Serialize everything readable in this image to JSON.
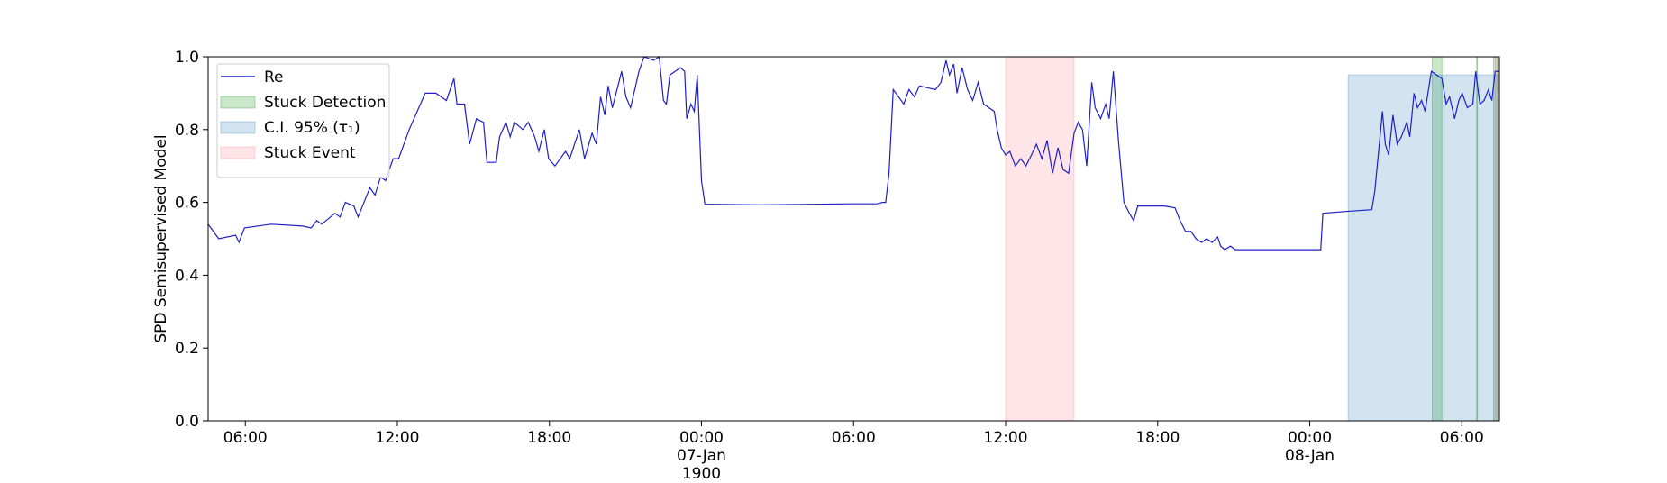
{
  "chart_data": {
    "type": "line",
    "ylabel": "SPD Semisupervised Model",
    "xlim": [
      "1900-01-06 04:32",
      "1900-01-08 07:29"
    ],
    "xticks": [
      {
        "value": "1900-01-06 06:00",
        "label": "06:00"
      },
      {
        "value": "1900-01-06 12:00",
        "label": "12:00"
      },
      {
        "value": "1900-01-06 18:00",
        "label": "18:00"
      },
      {
        "value": "1900-01-07 00:00",
        "label": "00:00\n07-Jan\n1900"
      },
      {
        "value": "1900-01-07 06:00",
        "label": "06:00"
      },
      {
        "value": "1900-01-07 12:00",
        "label": "12:00"
      },
      {
        "value": "1900-01-07 18:00",
        "label": "18:00"
      },
      {
        "value": "1900-01-08 00:00",
        "label": "00:00\n08-Jan"
      },
      {
        "value": "1900-01-08 06:00",
        "label": "06:00"
      }
    ],
    "ylim": [
      0,
      1
    ],
    "yticks": [
      {
        "value": 0,
        "label": "0.0"
      },
      {
        "value": 0.2,
        "label": "0.2"
      },
      {
        "value": 0.4,
        "label": "0.4"
      },
      {
        "value": 0.6,
        "label": "0.6"
      },
      {
        "value": 0.8,
        "label": "0.8"
      },
      {
        "value": 1,
        "label": "1.0"
      }
    ],
    "grid": false,
    "legend": "upper left",
    "x": [
      "1900-01-06 04:32",
      "1900-01-06 04:57",
      "1900-01-06 05:37",
      "1900-01-06 05:45",
      "1900-01-06 05:58",
      "1900-01-06 07:01",
      "1900-01-06 08:16",
      "1900-01-06 08:36",
      "1900-01-06 08:49",
      "1900-01-06 09:01",
      "1900-01-06 09:32",
      "1900-01-06 09:44",
      "1900-01-06 09:57",
      "1900-01-06 10:17",
      "1900-01-06 10:27",
      "1900-01-06 10:55",
      "1900-01-06 11:07",
      "1900-01-06 11:20",
      "1900-01-06 11:32",
      "1900-01-06 11:50",
      "1900-01-06 12:03",
      "1900-01-06 12:28",
      "1900-01-06 13:06",
      "1900-01-06 13:31",
      "1900-01-06 13:56",
      "1900-01-06 14:14",
      "1900-01-06 14:21",
      "1900-01-06 14:39",
      "1900-01-06 14:51",
      "1900-01-06 15:07",
      "1900-01-06 15:24",
      "1900-01-06 15:32",
      "1900-01-06 15:54",
      "1900-01-06 16:02",
      "1900-01-06 16:17",
      "1900-01-06 16:27",
      "1900-01-06 16:37",
      "1900-01-06 16:57",
      "1900-01-06 17:10",
      "1900-01-06 17:25",
      "1900-01-06 17:35",
      "1900-01-06 17:48",
      "1900-01-06 17:58",
      "1900-01-06 18:13",
      "1900-01-06 18:38",
      "1900-01-06 18:48",
      "1900-01-06 19:11",
      "1900-01-06 19:23",
      "1900-01-06 19:41",
      "1900-01-06 19:51",
      "1900-01-06 20:01",
      "1900-01-06 20:11",
      "1900-01-06 20:19",
      "1900-01-06 20:29",
      "1900-01-06 20:51",
      "1900-01-06 21:01",
      "1900-01-06 21:12",
      "1900-01-06 21:32",
      "1900-01-06 21:44",
      "1900-01-06 22:07",
      "1900-01-06 22:20",
      "1900-01-06 22:30",
      "1900-01-06 22:37",
      "1900-01-06 22:45",
      "1900-01-06 23:10",
      "1900-01-06 23:20",
      "1900-01-06 23:25",
      "1900-01-06 23:35",
      "1900-01-06 23:43",
      "1900-01-06 23:50",
      "1900-01-07 00:00",
      "1900-01-07 00:08",
      "1900-01-07 02:19",
      "1900-01-07 05:53",
      "1900-01-07 06:56",
      "1900-01-07 07:08",
      "1900-01-07 07:16",
      "1900-01-07 07:24",
      "1900-01-07 07:34",
      "1900-01-07 07:59",
      "1900-01-07 08:11",
      "1900-01-07 08:24",
      "1900-01-07 08:36",
      "1900-01-07 09:14",
      "1900-01-07 09:27",
      "1900-01-07 09:39",
      "1900-01-07 09:47",
      "1900-01-07 09:57",
      "1900-01-07 10:05",
      "1900-01-07 10:17",
      "1900-01-07 10:30",
      "1900-01-07 10:42",
      "1900-01-07 10:55",
      "1900-01-07 11:08",
      "1900-01-07 11:33",
      "1900-01-07 11:40",
      "1900-01-07 11:50",
      "1900-01-07 12:00",
      "1900-01-07 12:10",
      "1900-01-07 12:23",
      "1900-01-07 12:36",
      "1900-01-07 12:48",
      "1900-01-07 13:01",
      "1900-01-07 13:13",
      "1900-01-07 13:26",
      "1900-01-07 13:38",
      "1900-01-07 13:51",
      "1900-01-07 14:04",
      "1900-01-07 14:16",
      "1900-01-07 14:29",
      "1900-01-07 14:42",
      "1900-01-07 14:52",
      "1900-01-07 15:02",
      "1900-01-07 15:12",
      "1900-01-07 15:24",
      "1900-01-07 15:32",
      "1900-01-07 15:45",
      "1900-01-07 15:57",
      "1900-01-07 16:05",
      "1900-01-07 16:15",
      "1900-01-07 16:27",
      "1900-01-07 16:40",
      "1900-01-07 16:53",
      "1900-01-07 17:03",
      "1900-01-07 17:13",
      "1900-01-07 18:16",
      "1900-01-07 18:41",
      "1900-01-07 18:53",
      "1900-01-07 19:06",
      "1900-01-07 19:19",
      "1900-01-07 19:31",
      "1900-01-07 19:44",
      "1900-01-07 19:56",
      "1900-01-07 20:09",
      "1900-01-07 20:22",
      "1900-01-07 20:29",
      "1900-01-07 20:39",
      "1900-01-07 20:52",
      "1900-01-07 21:04",
      "1900-01-08 00:26",
      "1900-01-08 00:31",
      "1900-01-08 01:24",
      "1900-01-08 02:27",
      "1900-01-08 02:34",
      "1900-01-08 02:52",
      "1900-01-08 02:59",
      "1900-01-08 03:07",
      "1900-01-08 03:17",
      "1900-01-08 03:27",
      "1900-01-08 03:37",
      "1900-01-08 03:50",
      "1900-01-08 03:57",
      "1900-01-08 04:07",
      "1900-01-08 04:15",
      "1900-01-08 04:25",
      "1900-01-08 04:33",
      "1900-01-08 04:48",
      "1900-01-08 05:13",
      "1900-01-08 05:23",
      "1900-01-08 05:31",
      "1900-01-08 05:43",
      "1900-01-08 05:53",
      "1900-01-08 06:01",
      "1900-01-08 06:13",
      "1900-01-08 06:26",
      "1900-01-08 06:33",
      "1900-01-08 06:43",
      "1900-01-08 06:53",
      "1900-01-08 07:03",
      "1900-01-08 07:11",
      "1900-01-08 07:19",
      "1900-01-08 07:29"
    ],
    "series": [
      {
        "name": "Re",
        "color": "#1f1fc8",
        "values": [
          0.54,
          0.5,
          0.51,
          0.49,
          0.53,
          0.54,
          0.535,
          0.53,
          0.55,
          0.54,
          0.57,
          0.56,
          0.6,
          0.59,
          0.56,
          0.64,
          0.62,
          0.67,
          0.66,
          0.72,
          0.72,
          0.8,
          0.9,
          0.9,
          0.88,
          0.94,
          0.87,
          0.87,
          0.76,
          0.83,
          0.82,
          0.71,
          0.71,
          0.78,
          0.82,
          0.78,
          0.82,
          0.8,
          0.82,
          0.78,
          0.74,
          0.8,
          0.72,
          0.7,
          0.74,
          0.72,
          0.8,
          0.72,
          0.79,
          0.76,
          0.89,
          0.84,
          0.92,
          0.86,
          0.96,
          0.89,
          0.86,
          0.96,
          1.0,
          0.99,
          1.0,
          0.88,
          0.87,
          0.95,
          0.97,
          0.96,
          0.83,
          0.87,
          0.85,
          0.95,
          0.66,
          0.595,
          0.593,
          0.596,
          0.596,
          0.6,
          0.6,
          0.68,
          0.91,
          0.87,
          0.91,
          0.89,
          0.92,
          0.91,
          0.93,
          0.99,
          0.95,
          0.98,
          0.9,
          0.97,
          0.91,
          0.88,
          0.93,
          0.87,
          0.85,
          0.8,
          0.75,
          0.73,
          0.74,
          0.7,
          0.72,
          0.7,
          0.73,
          0.76,
          0.72,
          0.77,
          0.68,
          0.75,
          0.69,
          0.68,
          0.79,
          0.82,
          0.8,
          0.7,
          0.93,
          0.86,
          0.83,
          0.87,
          0.83,
          0.96,
          0.77,
          0.6,
          0.57,
          0.55,
          0.59,
          0.59,
          0.585,
          0.55,
          0.52,
          0.52,
          0.5,
          0.49,
          0.5,
          0.49,
          0.505,
          0.48,
          0.47,
          0.48,
          0.47,
          0.47,
          0.57,
          0.575,
          0.58,
          0.63,
          0.85,
          0.76,
          0.73,
          0.84,
          0.76,
          0.78,
          0.82,
          0.78,
          0.9,
          0.86,
          0.88,
          0.85,
          0.96,
          0.94,
          0.87,
          0.89,
          0.83,
          0.88,
          0.9,
          0.86,
          0.87,
          0.96,
          0.87,
          0.88,
          0.91,
          0.88,
          0.96,
          0.96
        ]
      }
    ],
    "spans": [
      {
        "name": "Stuck Detection",
        "color": "#2ca02c",
        "alpha": 0.25,
        "ranges": [
          [
            "1900-01-08 04:50",
            "1900-01-08 05:13"
          ],
          [
            "1900-01-08 06:35",
            "1900-01-08 06:37"
          ],
          [
            "1900-01-08 07:15",
            "1900-01-08 07:25"
          ]
        ]
      },
      {
        "name": "C.I. 95% (τ₁)",
        "color": "#1f77b4",
        "alpha": 0.2,
        "ranges": [
          [
            "1900-01-08 01:31",
            "1900-01-08 07:29"
          ]
        ],
        "y_range": [
          0,
          0.95
        ]
      },
      {
        "name": "Stuck Event",
        "color": "#ff3344",
        "alpha": 0.13,
        "ranges": [
          [
            "1900-01-07 12:00",
            "1900-01-07 14:42"
          ],
          [
            "1900-01-08 07:19",
            "1900-01-08 07:29"
          ]
        ]
      }
    ]
  }
}
